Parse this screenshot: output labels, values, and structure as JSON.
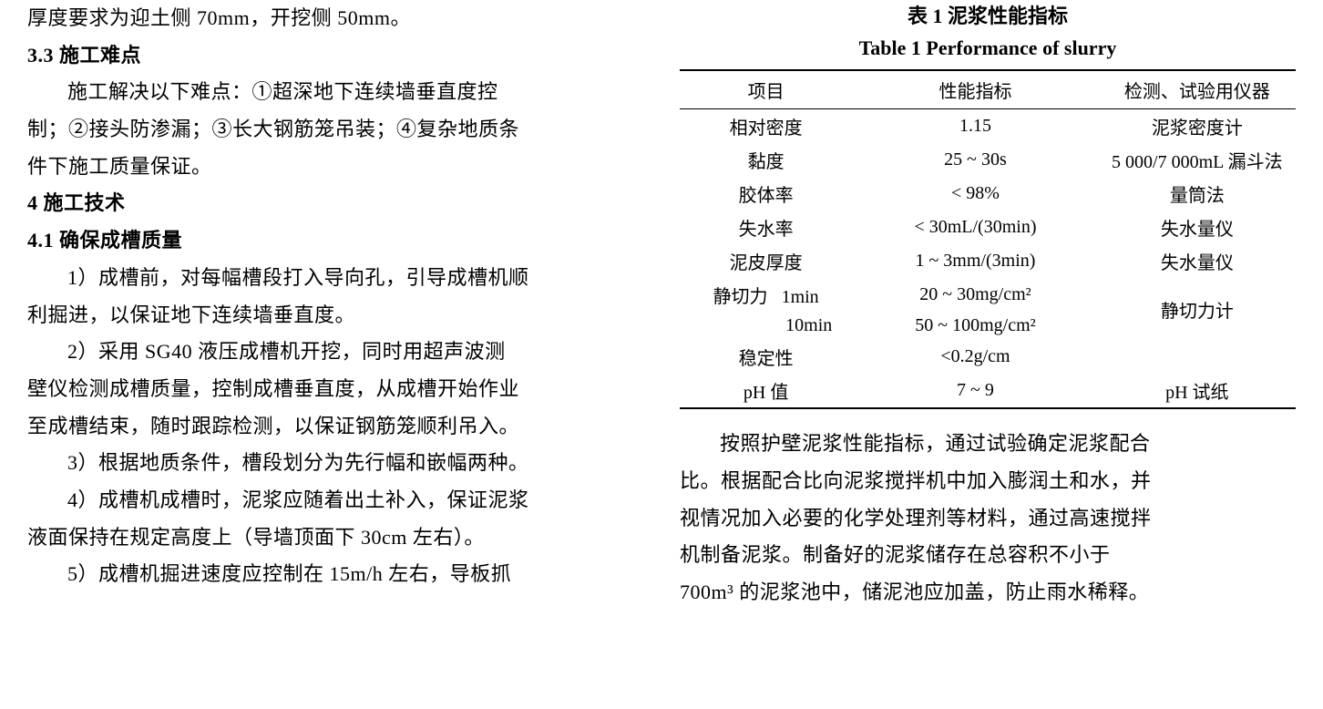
{
  "left": {
    "l1": "厚度要求为迎土侧 70mm，开挖侧 50mm。",
    "s33": "3.3  施工难点",
    "p33_1": "施工解决以下难点：①超深地下连续墙垂直度控",
    "p33_2": "制；②接头防渗漏；③长大钢筋笼吊装；④复杂地质条",
    "p33_3": "件下施工质量保证。",
    "s4": "4  施工技术",
    "s41": "4.1  确保成槽质量",
    "b1_1": "1）成槽前，对每幅槽段打入导向孔，引导成槽机顺",
    "b1_2": "利掘进，以保证地下连续墙垂直度。",
    "b2_1": "2）采用 SG40 液压成槽机开挖，同时用超声波测",
    "b2_2": "壁仪检测成槽质量，控制成槽垂直度，从成槽开始作业",
    "b2_3": "至成槽结束，随时跟踪检测，以保证钢筋笼顺利吊入。",
    "b3_1": "3）根据地质条件，槽段划分为先行幅和嵌幅两种。",
    "b4_1": "4）成槽机成槽时，泥浆应随着出土补入，保证泥浆",
    "b4_2": "液面保持在规定高度上（导墙顶面下 30cm 左右）。",
    "b5_1": "5）成槽机掘进速度应控制在 15m/h 左右，导板抓"
  },
  "right": {
    "title_cn": "表 1   泥浆性能指标",
    "title_en": "Table 1   Performance of slurry",
    "th1": "项目",
    "th2": "性能指标",
    "th3": "检测、试验用仪器",
    "rows": [
      {
        "c1": "相对密度",
        "c2": "1.15",
        "c3": "泥浆密度计"
      },
      {
        "c1": "黏度",
        "c2": "25 ~ 30s",
        "c3": "5 000/7 000mL 漏斗法"
      },
      {
        "c1": "胶体率",
        "c2": "< 98%",
        "c3": "量筒法"
      },
      {
        "c1": "失水率",
        "c2": "< 30mL/(30min)",
        "c3": "失水量仪"
      },
      {
        "c1": "泥皮厚度",
        "c2": "1 ~ 3mm/(3min)",
        "c3": "失水量仪"
      }
    ],
    "shear_label": "静切力",
    "shear_t1": "1min",
    "shear_v1": "20 ~ 30mg/cm²",
    "shear_t2": "10min",
    "shear_v2": "50 ~ 100mg/cm²",
    "shear_instr": "静切力计",
    "stability_label": "稳定性",
    "stability_val": "<0.2g/cm",
    "ph_label": "pH 值",
    "ph_val": "7 ~ 9",
    "ph_instr": "pH 试纸",
    "para1": "按照护壁泥浆性能指标，通过试验确定泥浆配合",
    "para2": "比。根据配合比向泥浆搅拌机中加入膨润土和水，并",
    "para3": "视情况加入必要的化学处理剂等材料，通过高速搅拌",
    "para4": "机制备泥浆。制备好的泥浆储存在总容积不小于",
    "para5": "700m³ 的泥浆池中，储泥池应加盖，防止雨水稀释。"
  }
}
